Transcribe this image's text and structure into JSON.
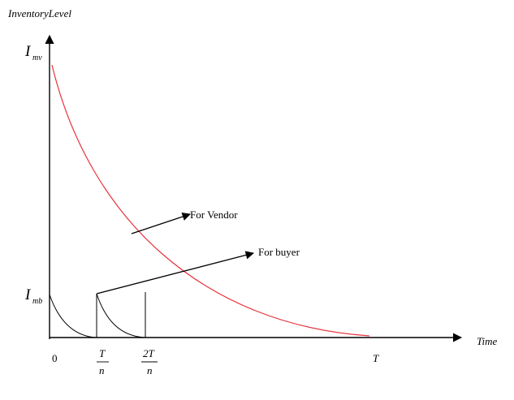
{
  "y_axis_label": "InventoryLevel",
  "x_axis_label": "Time",
  "y_tick_labels": {
    "vendor_max": {
      "main": "I",
      "sub": "mv"
    },
    "buyer_max": {
      "main": "I",
      "sub": "mb"
    }
  },
  "x_tick_labels": {
    "origin": "0",
    "t_over_n": {
      "num": "T",
      "den": "n"
    },
    "two_t_over_n": {
      "num": "2T",
      "den": "n"
    },
    "t": "T"
  },
  "annotations": {
    "vendor": "For Vendor",
    "buyer": "For buyer"
  },
  "colors": {
    "vendor_curve": "#e8323c",
    "buyer_curve": "#000000",
    "axes": "#000000"
  }
}
